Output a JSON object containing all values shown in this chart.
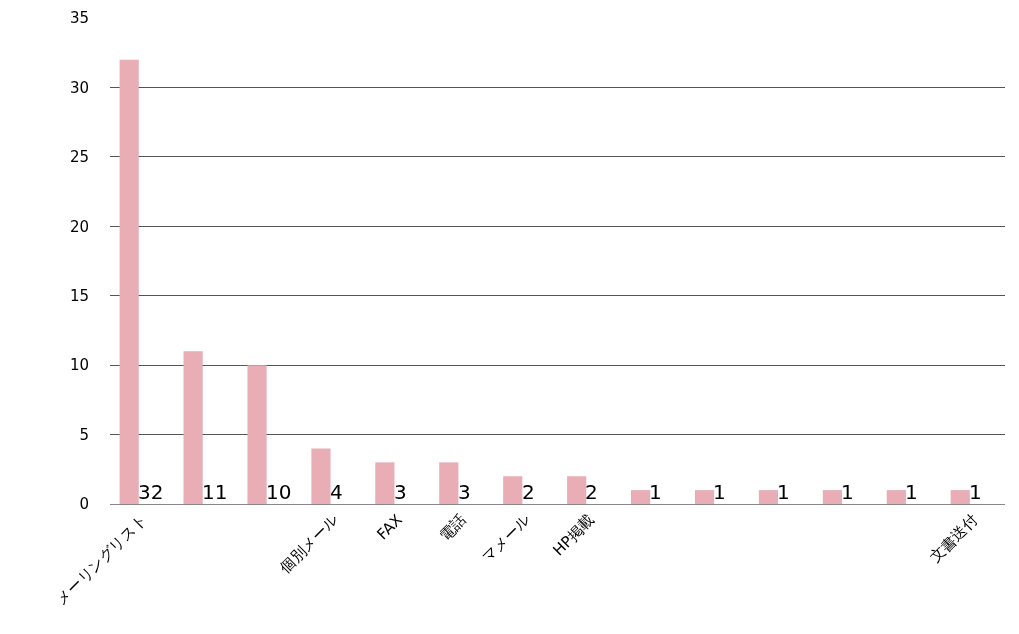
{
  "chart_data": {
    "type": "bar",
    "categories": [
      "メーリングリスト",
      null,
      null,
      "個別メール",
      "FAX",
      "電話",
      "マメール",
      "HP掲載",
      null,
      null,
      null,
      null,
      null,
      "文書送付"
    ],
    "values": [
      32,
      11,
      10,
      4,
      3,
      3,
      2,
      2,
      1,
      1,
      1,
      1,
      1,
      1
    ],
    "color": "#e8adb5",
    "ylim": [
      0,
      35
    ],
    "yticks": [
      0,
      5,
      10,
      15,
      20,
      25,
      30,
      35
    ],
    "grid": "y",
    "data_labels": true
  }
}
